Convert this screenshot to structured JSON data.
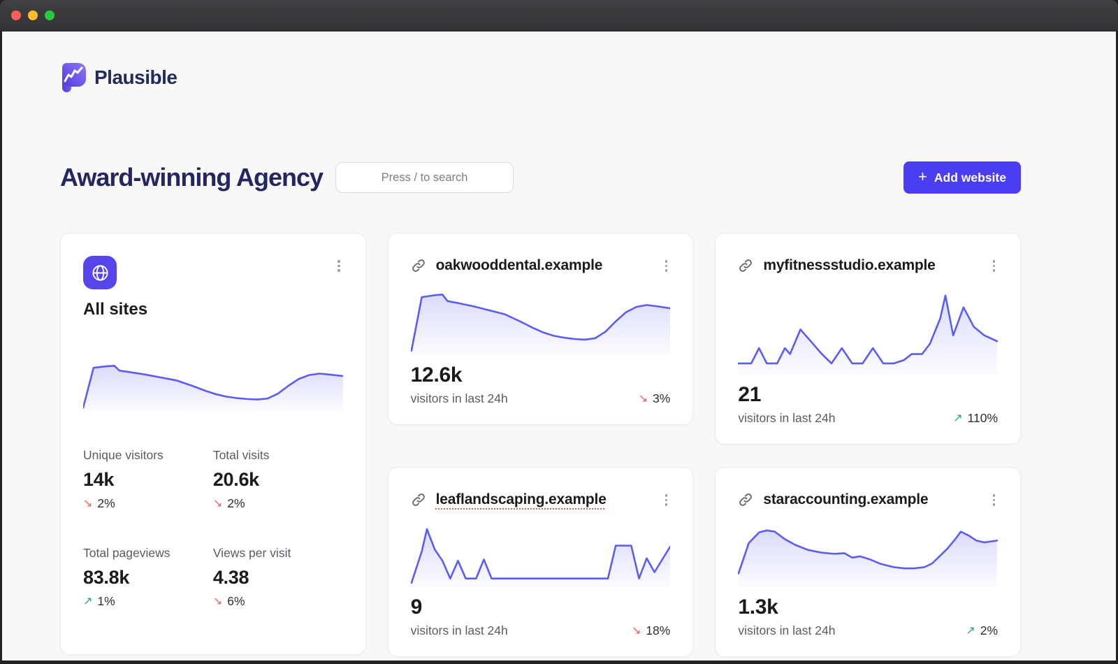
{
  "colors": {
    "accent_button": "#4b3df0",
    "brand_icon": "#6152e8",
    "spark_line": "#5a5df0",
    "delta_down": "#f25f5f",
    "delta_up": "#1fa97c",
    "traffic_red": "#ff5f57",
    "traffic_yellow": "#febc2e",
    "traffic_green": "#28c840"
  },
  "brand": {
    "name": "Plausible"
  },
  "header": {
    "title": "Award-winning Agency",
    "search_placeholder": "Press / to search",
    "add_button_label": "Add website",
    "add_button_icon": "+"
  },
  "all_sites": {
    "title": "All sites",
    "stats": [
      {
        "label": "Unique visitors",
        "value": "14k",
        "delta": "2%",
        "direction": "down",
        "arrow": "↘"
      },
      {
        "label": "Total visits",
        "value": "20.6k",
        "delta": "2%",
        "direction": "down",
        "arrow": "↘"
      },
      {
        "label": "Total pageviews",
        "value": "83.8k",
        "delta": "1%",
        "direction": "up",
        "arrow": "↗"
      },
      {
        "label": "Views per visit",
        "value": "4.38",
        "delta": "6%",
        "direction": "down",
        "arrow": "↘"
      }
    ]
  },
  "site_cards": [
    {
      "domain": "oakwooddental.example",
      "value": "12.6k",
      "caption": "visitors in last 24h",
      "delta": "3%",
      "direction": "down",
      "arrow": "↘"
    },
    {
      "domain": "myfitnessstudio.example",
      "value": "21",
      "caption": "visitors in last 24h",
      "delta": "110%",
      "direction": "up",
      "arrow": "↗"
    },
    {
      "domain": "leaflandscaping.example",
      "value": "9",
      "caption": "visitors in last 24h",
      "delta": "18%",
      "direction": "down",
      "arrow": "↘"
    },
    {
      "domain": "staraccounting.example",
      "value": "1.3k",
      "caption": "visitors in last 24h",
      "delta": "2%",
      "direction": "up",
      "arrow": "↗"
    }
  ],
  "chart_data": [
    {
      "name": "All sites 24h sparkline",
      "type": "line",
      "units": "relative traffic, x=0-100% of 24h, y=% from top",
      "points": [
        [
          0,
          95
        ],
        [
          4,
          13
        ],
        [
          9,
          10
        ],
        [
          12,
          9
        ],
        [
          14,
          19
        ],
        [
          18,
          22
        ],
        [
          24,
          27
        ],
        [
          30,
          33
        ],
        [
          36,
          39
        ],
        [
          42,
          50
        ],
        [
          47,
          60
        ],
        [
          51,
          67
        ],
        [
          55,
          72
        ],
        [
          59,
          75
        ],
        [
          63,
          77
        ],
        [
          67,
          78
        ],
        [
          71,
          76
        ],
        [
          75,
          66
        ],
        [
          79,
          50
        ],
        [
          83,
          36
        ],
        [
          87,
          28
        ],
        [
          91,
          25
        ],
        [
          95,
          27
        ],
        [
          100,
          30
        ]
      ]
    },
    {
      "name": "oakwooddental.example sparkline",
      "type": "line",
      "units": "relative",
      "points": [
        [
          0,
          95
        ],
        [
          4,
          13
        ],
        [
          9,
          10
        ],
        [
          12,
          9
        ],
        [
          14,
          19
        ],
        [
          18,
          22
        ],
        [
          24,
          27
        ],
        [
          30,
          33
        ],
        [
          36,
          39
        ],
        [
          42,
          50
        ],
        [
          47,
          60
        ],
        [
          51,
          67
        ],
        [
          55,
          72
        ],
        [
          59,
          75
        ],
        [
          63,
          77
        ],
        [
          67,
          78
        ],
        [
          71,
          76
        ],
        [
          75,
          66
        ],
        [
          79,
          50
        ],
        [
          83,
          36
        ],
        [
          87,
          28
        ],
        [
          91,
          25
        ],
        [
          95,
          27
        ],
        [
          100,
          30
        ]
      ]
    },
    {
      "name": "myfitnessstudio.example sparkline",
      "type": "line",
      "units": "relative",
      "points": [
        [
          0,
          88
        ],
        [
          5,
          88
        ],
        [
          8,
          70
        ],
        [
          11,
          88
        ],
        [
          15,
          88
        ],
        [
          18,
          70
        ],
        [
          20,
          77
        ],
        [
          24,
          48
        ],
        [
          28,
          62
        ],
        [
          32,
          76
        ],
        [
          36,
          88
        ],
        [
          40,
          70
        ],
        [
          44,
          88
        ],
        [
          48,
          88
        ],
        [
          52,
          70
        ],
        [
          56,
          88
        ],
        [
          60,
          88
        ],
        [
          64,
          84
        ],
        [
          67,
          77
        ],
        [
          71,
          77
        ],
        [
          74,
          65
        ],
        [
          78,
          35
        ],
        [
          80,
          8
        ],
        [
          83,
          55
        ],
        [
          87,
          22
        ],
        [
          91,
          45
        ],
        [
          95,
          55
        ],
        [
          100,
          62
        ]
      ]
    },
    {
      "name": "leaflandscaping.example sparkline",
      "type": "line",
      "units": "relative",
      "points": [
        [
          0,
          95
        ],
        [
          4,
          45
        ],
        [
          6,
          10
        ],
        [
          9,
          42
        ],
        [
          12,
          60
        ],
        [
          15,
          88
        ],
        [
          18,
          60
        ],
        [
          21,
          88
        ],
        [
          25,
          88
        ],
        [
          28,
          58
        ],
        [
          31,
          88
        ],
        [
          38,
          88
        ],
        [
          46,
          88
        ],
        [
          54,
          88
        ],
        [
          62,
          88
        ],
        [
          70,
          88
        ],
        [
          76,
          88
        ],
        [
          79,
          36
        ],
        [
          85,
          36
        ],
        [
          88,
          88
        ],
        [
          91,
          56
        ],
        [
          94,
          78
        ],
        [
          100,
          38
        ]
      ]
    },
    {
      "name": "staraccounting.example sparkline",
      "type": "line",
      "units": "relative",
      "points": [
        [
          0,
          80
        ],
        [
          4,
          32
        ],
        [
          8,
          15
        ],
        [
          11,
          12
        ],
        [
          14,
          14
        ],
        [
          18,
          26
        ],
        [
          22,
          35
        ],
        [
          27,
          43
        ],
        [
          32,
          47
        ],
        [
          37,
          49
        ],
        [
          41,
          48
        ],
        [
          44,
          55
        ],
        [
          47,
          53
        ],
        [
          51,
          58
        ],
        [
          55,
          65
        ],
        [
          60,
          70
        ],
        [
          64,
          72
        ],
        [
          68,
          72
        ],
        [
          72,
          70
        ],
        [
          75,
          64
        ],
        [
          78,
          52
        ],
        [
          81,
          40
        ],
        [
          84,
          25
        ],
        [
          86,
          14
        ],
        [
          89,
          20
        ],
        [
          92,
          28
        ],
        [
          95,
          31
        ],
        [
          100,
          28
        ]
      ]
    }
  ]
}
